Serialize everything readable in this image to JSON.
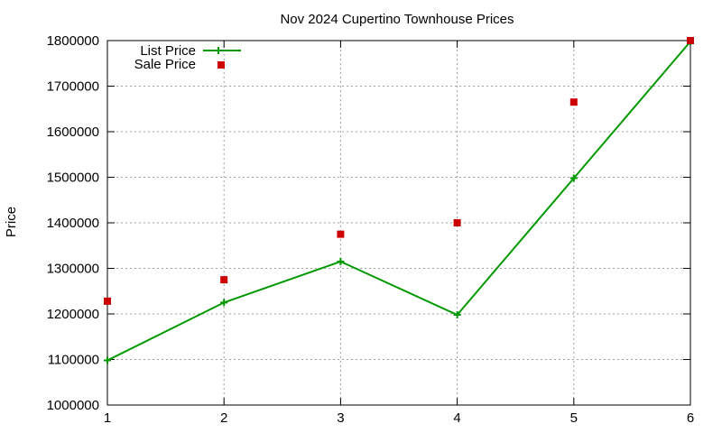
{
  "chart_data": {
    "type": "line",
    "title": "Nov 2024 Cupertino Townhouse Prices",
    "xlabel": "",
    "ylabel": "Price",
    "x": [
      1,
      2,
      3,
      4,
      5,
      6
    ],
    "xlim": [
      1,
      6
    ],
    "ylim": [
      1000000,
      1800000
    ],
    "x_ticks": [
      "1",
      "2",
      "3",
      "4",
      "5",
      "6"
    ],
    "y_ticks": [
      "1000000",
      "1100000",
      "1200000",
      "1300000",
      "1400000",
      "1500000",
      "1600000",
      "1700000",
      "1800000"
    ],
    "grid": true,
    "legend_position": "top-left",
    "series": [
      {
        "name": "List Price",
        "style": "line-with-plus-markers",
        "color": "#009900",
        "values": [
          1098000,
          1225000,
          1315000,
          1198000,
          1498000,
          1798000
        ]
      },
      {
        "name": "Sale Price",
        "style": "square-markers",
        "color": "#cc0000",
        "values": [
          1228000,
          1275000,
          1375000,
          1400000,
          1665000,
          1800000
        ]
      }
    ]
  }
}
